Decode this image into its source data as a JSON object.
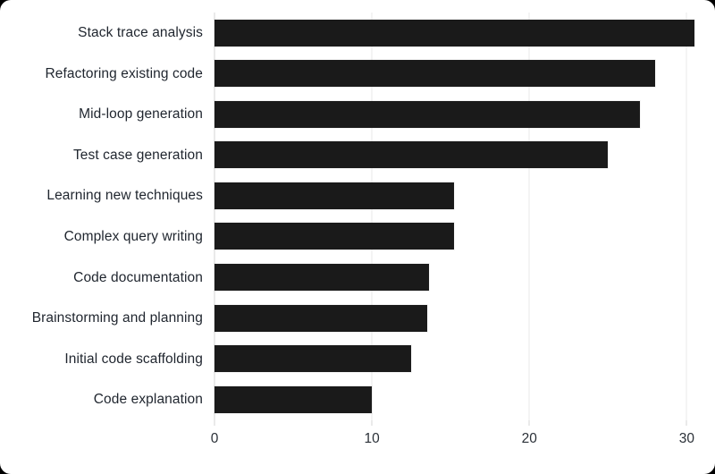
{
  "page": {
    "background_color": "#000000",
    "card_background_color": "#ffffff"
  },
  "chart_data": {
    "type": "bar",
    "orientation": "horizontal",
    "title": "",
    "xlabel": "",
    "ylabel": "",
    "categories": [
      "Stack trace analysis",
      "Refactoring existing code",
      "Mid-loop generation",
      "Test case generation",
      "Learning new techniques",
      "Complex query writing",
      "Code documentation",
      "Brainstorming and planning",
      "Initial code scaffolding",
      "Code explanation"
    ],
    "values": [
      30.5,
      28,
      27,
      25,
      15.2,
      15.2,
      13.6,
      13.5,
      12.5,
      10
    ],
    "xticks": [
      0,
      10,
      20,
      30
    ],
    "xlim": [
      0,
      31
    ],
    "grid": "vertical",
    "legend": "none",
    "bar_color": "#1a1a1a",
    "gridline_color": "#e9e9e9",
    "axis_line_color": "#d4d4d4",
    "category_label_color": "#1f252e",
    "tick_label_color": "#2b3138"
  }
}
